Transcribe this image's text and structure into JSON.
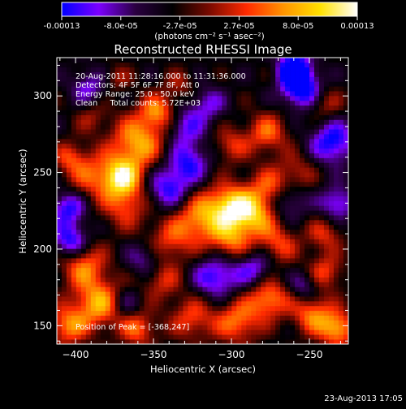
{
  "colorbar": {
    "tick_labels": [
      "-0.00013",
      "-8.0e-05",
      "-2.7e-05",
      "2.7e-05",
      "8.0e-05",
      "0.00013"
    ],
    "unit_label": "(photons cm⁻² s⁻¹ asec⁻²)",
    "vmin": -0.00013,
    "vmax": 0.00013,
    "colormap": [
      "#0000ff",
      "#7c00ff",
      "#2a0040",
      "#000000",
      "#7a0a00",
      "#ff2a00",
      "#ff9400",
      "#ffe100",
      "#ffffff"
    ]
  },
  "chart_data": {
    "type": "heatmap",
    "title": "Reconstructed RHESSI Image",
    "xlabel": "Heliocentric X (arcsec)",
    "ylabel": "Heliocentric Y (arcsec)",
    "xlim": [
      -412,
      -225
    ],
    "ylim": [
      138,
      325
    ],
    "x_ticks": [
      -400,
      -350,
      -300,
      -250
    ],
    "y_ticks": [
      150,
      200,
      250,
      300
    ],
    "info_lines": [
      "20-Aug-2011 11:28:16.000 to 11:31:36.000",
      "Detectors: 4F 5F 6F 7F 8F, Att 0",
      "Energy Range: 25.0 - 50.0 keV",
      "Clean     Total counts: 5.72E+03"
    ],
    "peak_label": "Position of Peak = [-368,247]",
    "peak": {
      "x": -368,
      "y": 247
    },
    "grid": false,
    "legend": "colorbar-top",
    "blobs": [
      {
        "x": -370,
        "y": 247,
        "value": 0.00013,
        "r": 9
      },
      {
        "x": -360,
        "y": 270,
        "value": 0.00011,
        "r": 12
      },
      {
        "x": -347,
        "y": 290,
        "value": 9e-05,
        "r": 8
      },
      {
        "x": -390,
        "y": 248,
        "value": 7e-05,
        "r": 11
      },
      {
        "x": -368,
        "y": 228,
        "value": 7e-05,
        "r": 10
      },
      {
        "x": -404,
        "y": 260,
        "value": 6e-05,
        "r": 7
      },
      {
        "x": -390,
        "y": 286,
        "value": 4e-05,
        "r": 7
      },
      {
        "x": -300,
        "y": 228,
        "value": 0.00012,
        "r": 10
      },
      {
        "x": -320,
        "y": 220,
        "value": 0.0001,
        "r": 12
      },
      {
        "x": -285,
        "y": 222,
        "value": 0.0001,
        "r": 10
      },
      {
        "x": -275,
        "y": 240,
        "value": 8e-05,
        "r": 9
      },
      {
        "x": -300,
        "y": 205,
        "value": 8e-05,
        "r": 9
      },
      {
        "x": -340,
        "y": 205,
        "value": 6e-05,
        "r": 10
      },
      {
        "x": -270,
        "y": 203,
        "value": 7e-05,
        "r": 9
      },
      {
        "x": -240,
        "y": 210,
        "value": 6e-05,
        "r": 8
      },
      {
        "x": -300,
        "y": 268,
        "value": 6e-05,
        "r": 8
      },
      {
        "x": -277,
        "y": 276,
        "value": 8e-05,
        "r": 9
      },
      {
        "x": -240,
        "y": 295,
        "value": 5e-05,
        "r": 8
      },
      {
        "x": -258,
        "y": 250,
        "value": 5e-05,
        "r": 9
      },
      {
        "x": -395,
        "y": 190,
        "value": 9e-05,
        "r": 10
      },
      {
        "x": -385,
        "y": 165,
        "value": 0.00011,
        "r": 11
      },
      {
        "x": -405,
        "y": 150,
        "value": 9e-05,
        "r": 9
      },
      {
        "x": -360,
        "y": 148,
        "value": 8e-05,
        "r": 8
      },
      {
        "x": -325,
        "y": 155,
        "value": 7e-05,
        "r": 10
      },
      {
        "x": -345,
        "y": 180,
        "value": 6e-05,
        "r": 9
      },
      {
        "x": -296,
        "y": 153,
        "value": 9e-05,
        "r": 10
      },
      {
        "x": -276,
        "y": 168,
        "value": 0.0001,
        "r": 9
      },
      {
        "x": -248,
        "y": 158,
        "value": 9e-05,
        "r": 9
      },
      {
        "x": -232,
        "y": 148,
        "value": 0.00011,
        "r": 8
      },
      {
        "x": -240,
        "y": 185,
        "value": 7e-05,
        "r": 8
      },
      {
        "x": -333,
        "y": 307,
        "value": 4e-05,
        "r": 7
      },
      {
        "x": -373,
        "y": 312,
        "value": 4e-05,
        "r": 6
      },
      {
        "x": -403,
        "y": 205,
        "value": -0.0001,
        "r": 8
      },
      {
        "x": -405,
        "y": 227,
        "value": -9e-05,
        "r": 8
      },
      {
        "x": -340,
        "y": 240,
        "value": -9e-05,
        "r": 10
      },
      {
        "x": -327,
        "y": 257,
        "value": -8e-05,
        "r": 9
      },
      {
        "x": -330,
        "y": 280,
        "value": -7e-05,
        "r": 9
      },
      {
        "x": -255,
        "y": 305,
        "value": -0.00012,
        "r": 9
      },
      {
        "x": -235,
        "y": 270,
        "value": -0.0001,
        "r": 10
      },
      {
        "x": -265,
        "y": 232,
        "value": -7e-05,
        "r": 9
      },
      {
        "x": -310,
        "y": 182,
        "value": -9e-05,
        "r": 10
      },
      {
        "x": -285,
        "y": 188,
        "value": -7e-05,
        "r": 9
      },
      {
        "x": -260,
        "y": 318,
        "value": -0.00013,
        "r": 7
      },
      {
        "x": -355,
        "y": 193,
        "value": -6e-05,
        "r": 8
      },
      {
        "x": -368,
        "y": 165,
        "value": -5e-05,
        "r": 7
      },
      {
        "x": -315,
        "y": 295,
        "value": -6e-05,
        "r": 8
      },
      {
        "x": -392,
        "y": 306,
        "value": -6e-05,
        "r": 8
      },
      {
        "x": -232,
        "y": 230,
        "value": -8e-05,
        "r": 8
      },
      {
        "x": -253,
        "y": 176,
        "value": -6e-05,
        "r": 7
      }
    ]
  },
  "footer": {
    "timestamp": "23-Aug-2013 17:05"
  }
}
